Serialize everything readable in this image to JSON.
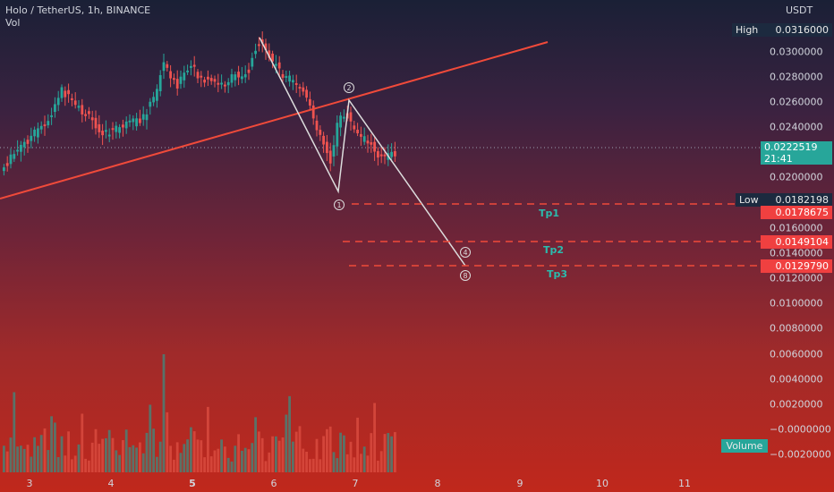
{
  "header": {
    "symbol_line": "Holo / TetherUS, 1h, BINANCE",
    "indicator": "Vol"
  },
  "price_axis": {
    "currency": "USDT",
    "ticks": [
      "0.0300000",
      "0.0280000",
      "0.0260000",
      "0.0240000",
      "0.0200000",
      "0.0160000",
      "0.0140000",
      "0.0120000",
      "0.0100000",
      "0.0080000",
      "0.0060000",
      "0.0040000",
      "0.0020000",
      "−0.0000000",
      "−0.0020000"
    ]
  },
  "time_axis": {
    "labels": [
      "3",
      "4",
      "5",
      "6",
      "7",
      "8",
      "9",
      "10",
      "11"
    ]
  },
  "tags": {
    "high_label": "High",
    "high_value": "0.0316000",
    "current_value": "0.0222519",
    "countdown": "21:41",
    "low_label": "Low",
    "low_value": "0.0182198",
    "tp1_value": "0.0178675",
    "tp2_value": "0.0149104",
    "tp3_value": "0.0129790",
    "volume_label": "Volume"
  },
  "targets": {
    "tp1": "Tp1",
    "tp2": "Tp2",
    "tp3": "Tp3"
  },
  "wave_labels": {
    "w1": "1",
    "w2": "2",
    "w4": "4",
    "w8": "8"
  },
  "colors": {
    "up": "#26a69a",
    "down": "#ef5350",
    "trendline": "#f04a3a",
    "wave": "#dcdcdc",
    "tp": "#2bbbad"
  }
}
